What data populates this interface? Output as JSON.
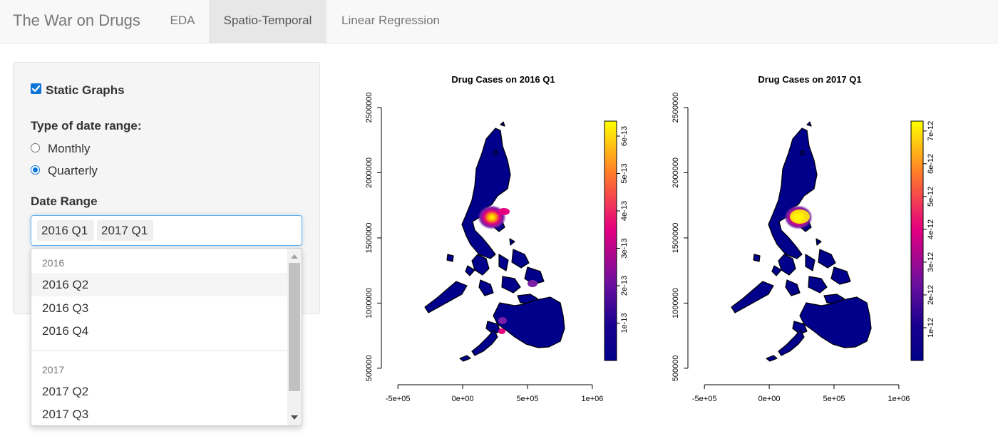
{
  "navbar": {
    "brand": "The War on Drugs",
    "tabs": [
      {
        "label": "EDA",
        "active": false
      },
      {
        "label": "Spatio-Temporal",
        "active": true
      },
      {
        "label": "Linear Regression",
        "active": false
      }
    ]
  },
  "sidebar": {
    "static_graphs": {
      "label": "Static Graphs",
      "checked": true
    },
    "date_type": {
      "label": "Type of date range:",
      "options": [
        {
          "label": "Monthly",
          "selected": false
        },
        {
          "label": "Quarterly",
          "selected": true
        }
      ]
    },
    "date_range": {
      "label": "Date Range",
      "selected": [
        "2016 Q1",
        "2017 Q1"
      ],
      "dropdown": {
        "groups": [
          {
            "header": "2016",
            "options": [
              "2016 Q2",
              "2016 Q3",
              "2016 Q4"
            ]
          },
          {
            "header": "2017",
            "options": [
              "2017 Q2",
              "2017 Q3"
            ]
          }
        ],
        "highlighted": "2016 Q2"
      }
    }
  },
  "colors": {
    "accent": "#0b75d9",
    "map_low": "#00008b",
    "map_mid": "#e5007f",
    "map_high": "#ffff00"
  },
  "chart_data": [
    {
      "type": "heatmap",
      "title": "Drug Cases on 2016 Q1",
      "x_ticks": [
        "-5e+05",
        "0e+00",
        "5e+05",
        "1e+06"
      ],
      "x_tick_values": [
        -500000,
        0,
        500000,
        1000000
      ],
      "y_ticks": [
        "500000",
        "1000000",
        "1500000",
        "2000000",
        "2500000"
      ],
      "y_tick_values": [
        500000,
        1000000,
        1500000,
        2000000,
        2500000
      ],
      "legend_ticks": [
        "1e-13",
        "2e-13",
        "3e-13",
        "4e-13",
        "5e-13",
        "6e-13"
      ],
      "legend_values": [
        1e-13,
        2e-13,
        3e-13,
        4e-13,
        5e-13,
        6e-13
      ],
      "legend_range": [
        0,
        6.4e-13
      ],
      "legend_position": "right"
    },
    {
      "type": "heatmap",
      "title": "Drug Cases on 2017 Q1",
      "x_ticks": [
        "-5e+05",
        "0e+00",
        "5e+05",
        "1e+06"
      ],
      "x_tick_values": [
        -500000,
        0,
        500000,
        1000000
      ],
      "y_ticks": [
        "500000",
        "1000000",
        "1500000",
        "2000000",
        "2500000"
      ],
      "y_tick_values": [
        500000,
        1000000,
        1500000,
        2000000,
        2500000
      ],
      "legend_ticks": [
        "1e-12",
        "2e-12",
        "3e-12",
        "4e-12",
        "5e-12",
        "6e-12",
        "7e-12"
      ],
      "legend_values": [
        1e-12,
        2e-12,
        3e-12,
        4e-12,
        5e-12,
        6e-12,
        7e-12
      ],
      "legend_range": [
        0,
        7.3e-12
      ],
      "legend_position": "right"
    }
  ]
}
